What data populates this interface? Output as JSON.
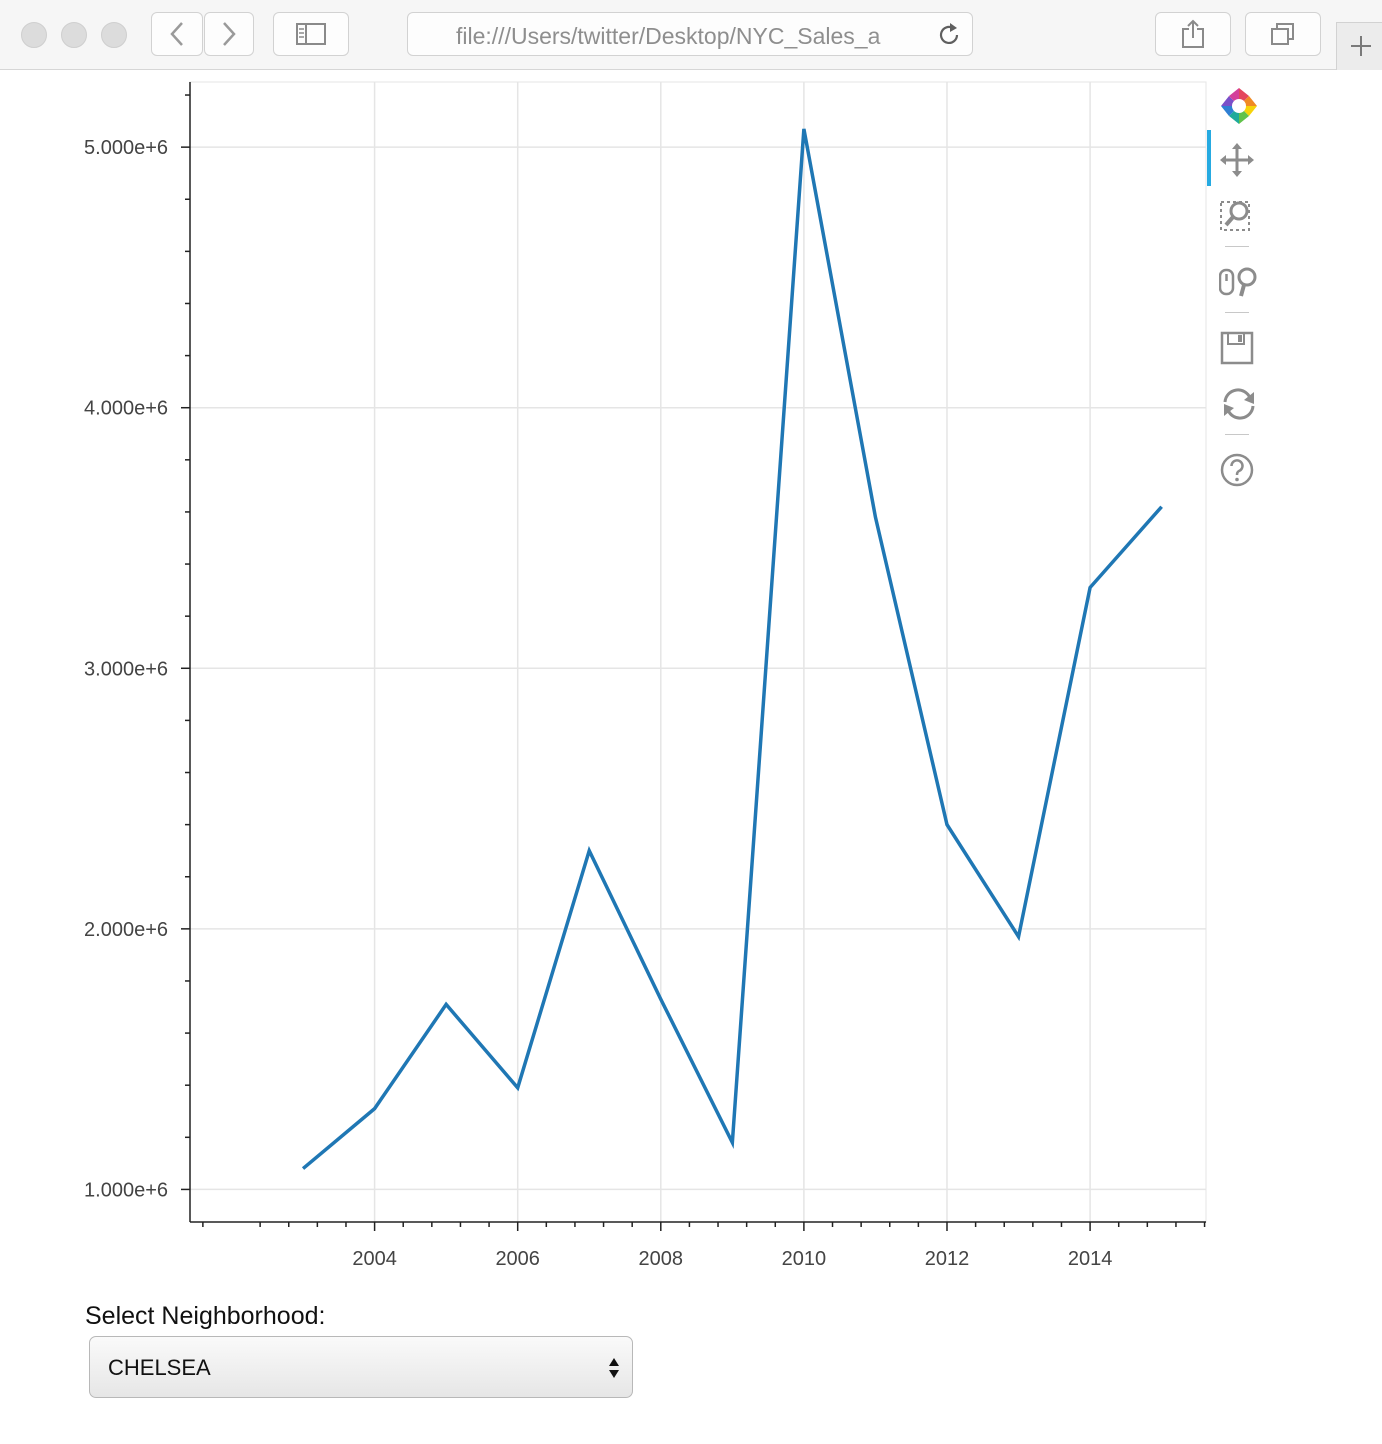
{
  "browser": {
    "url": "file:///Users/twitter/Desktop/NYC_Sales_a"
  },
  "chart_data": {
    "type": "line",
    "title": "",
    "xlabel": "",
    "ylabel": "",
    "x": [
      2003,
      2004,
      2005,
      2006,
      2007,
      2008,
      2009,
      2010,
      2011,
      2012,
      2013,
      2014,
      2015
    ],
    "series": [
      {
        "values": [
          1080000,
          1310000,
          1710000,
          1390000,
          2300000,
          1730000,
          1180000,
          5070000,
          3580000,
          2400000,
          1970000,
          3310000,
          3620000
        ],
        "color": "#1f77b4"
      }
    ],
    "xlim": [
      2001.42,
      2015.62
    ],
    "ylim": [
      875000,
      5250000
    ],
    "x_ticks": [
      "2004",
      "2006",
      "2008",
      "2010",
      "2012",
      "2014"
    ],
    "y_ticks": [
      "1.000e+6",
      "2.000e+6",
      "3.000e+6",
      "4.000e+6",
      "5.000e+6"
    ],
    "grid": true,
    "legend": "none"
  },
  "toolbar": {
    "tools": [
      "bokeh-logo-icon",
      "pan-icon",
      "box-zoom-icon",
      "wheel-zoom-icon",
      "save-icon",
      "reset-icon",
      "help-icon"
    ],
    "active": "pan-icon"
  },
  "widget": {
    "label": "Select Neighborhood:",
    "selected": "CHELSEA"
  }
}
